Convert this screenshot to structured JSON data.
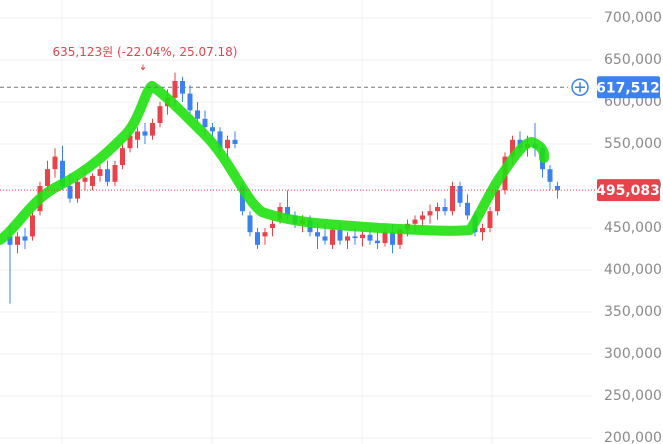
{
  "chart_data": {
    "type": "candlestick",
    "ylim": [
      200000,
      700000
    ],
    "yticks": [
      {
        "value": 200000,
        "label": "200,000"
      },
      {
        "value": 250000,
        "label": "250,000"
      },
      {
        "value": 300000,
        "label": "300,000"
      },
      {
        "value": 350000,
        "label": "350,000"
      },
      {
        "value": 400000,
        "label": "400,000"
      },
      {
        "value": 450000,
        "label": "450,000"
      },
      {
        "value": 500000,
        "label": "500,000"
      },
      {
        "value": 550000,
        "label": "550,000"
      },
      {
        "value": 600000,
        "label": "600,000"
      },
      {
        "value": 650000,
        "label": "650,000"
      },
      {
        "value": 700000,
        "label": "700,000"
      }
    ],
    "grid": true,
    "up_color": "#e8424b",
    "down_color": "#3b82f0",
    "high_marker": {
      "value": 635123,
      "label": "635,123원 (-22.04%, 25.07.18)"
    },
    "reference_line": {
      "value": 617512,
      "label": "617,512"
    },
    "current_price": {
      "value": 495083,
      "label": "495,083"
    },
    "candles": [
      {
        "o": 440000,
        "h": 455000,
        "l": 360000,
        "c": 430000
      },
      {
        "o": 430000,
        "h": 445000,
        "l": 420000,
        "c": 440000
      },
      {
        "o": 440000,
        "h": 450000,
        "l": 425000,
        "c": 435000
      },
      {
        "o": 440000,
        "h": 470000,
        "l": 435000,
        "c": 465000
      },
      {
        "o": 470000,
        "h": 505000,
        "l": 465000,
        "c": 500000
      },
      {
        "o": 500000,
        "h": 530000,
        "l": 495000,
        "c": 520000
      },
      {
        "o": 520000,
        "h": 545000,
        "l": 510000,
        "c": 535000
      },
      {
        "o": 530000,
        "h": 548000,
        "l": 495000,
        "c": 500000
      },
      {
        "o": 500000,
        "h": 515000,
        "l": 480000,
        "c": 485000
      },
      {
        "o": 485000,
        "h": 510000,
        "l": 480000,
        "c": 505000
      },
      {
        "o": 505000,
        "h": 520000,
        "l": 495000,
        "c": 510000
      },
      {
        "o": 500000,
        "h": 515000,
        "l": 495000,
        "c": 512000
      },
      {
        "o": 512000,
        "h": 525000,
        "l": 505000,
        "c": 520000
      },
      {
        "o": 520000,
        "h": 530000,
        "l": 500000,
        "c": 505000
      },
      {
        "o": 505000,
        "h": 530000,
        "l": 500000,
        "c": 525000
      },
      {
        "o": 525000,
        "h": 550000,
        "l": 520000,
        "c": 545000
      },
      {
        "o": 545000,
        "h": 565000,
        "l": 540000,
        "c": 560000
      },
      {
        "o": 555000,
        "h": 570000,
        "l": 545000,
        "c": 565000
      },
      {
        "o": 565000,
        "h": 575000,
        "l": 550000,
        "c": 560000
      },
      {
        "o": 560000,
        "h": 580000,
        "l": 555000,
        "c": 575000
      },
      {
        "o": 575000,
        "h": 600000,
        "l": 570000,
        "c": 595000
      },
      {
        "o": 595000,
        "h": 615000,
        "l": 585000,
        "c": 605000
      },
      {
        "o": 605000,
        "h": 635000,
        "l": 595000,
        "c": 625000
      },
      {
        "o": 625000,
        "h": 630000,
        "l": 600000,
        "c": 610000
      },
      {
        "o": 610000,
        "h": 620000,
        "l": 585000,
        "c": 590000
      },
      {
        "o": 590000,
        "h": 600000,
        "l": 575000,
        "c": 580000
      },
      {
        "o": 580000,
        "h": 590000,
        "l": 560000,
        "c": 570000
      },
      {
        "o": 570000,
        "h": 575000,
        "l": 555000,
        "c": 565000
      },
      {
        "o": 565000,
        "h": 570000,
        "l": 540000,
        "c": 545000
      },
      {
        "o": 545000,
        "h": 560000,
        "l": 535000,
        "c": 555000
      },
      {
        "o": 555000,
        "h": 565000,
        "l": 545000,
        "c": 550000
      },
      {
        "o": 500000,
        "h": 505000,
        "l": 465000,
        "c": 470000
      },
      {
        "o": 465000,
        "h": 470000,
        "l": 440000,
        "c": 445000
      },
      {
        "o": 445000,
        "h": 450000,
        "l": 425000,
        "c": 430000
      },
      {
        "o": 440000,
        "h": 450000,
        "l": 430000,
        "c": 445000
      },
      {
        "o": 450000,
        "h": 460000,
        "l": 440000,
        "c": 455000
      },
      {
        "o": 460000,
        "h": 480000,
        "l": 455000,
        "c": 475000
      },
      {
        "o": 475000,
        "h": 495000,
        "l": 460000,
        "c": 465000
      },
      {
        "o": 465000,
        "h": 470000,
        "l": 450000,
        "c": 455000
      },
      {
        "o": 455000,
        "h": 465000,
        "l": 445000,
        "c": 460000
      },
      {
        "o": 460000,
        "h": 465000,
        "l": 440000,
        "c": 445000
      },
      {
        "o": 445000,
        "h": 455000,
        "l": 425000,
        "c": 440000
      },
      {
        "o": 440000,
        "h": 455000,
        "l": 430000,
        "c": 435000
      },
      {
        "o": 430000,
        "h": 450000,
        "l": 425000,
        "c": 448000
      },
      {
        "o": 448000,
        "h": 455000,
        "l": 430000,
        "c": 435000
      },
      {
        "o": 435000,
        "h": 445000,
        "l": 425000,
        "c": 440000
      },
      {
        "o": 440000,
        "h": 450000,
        "l": 430000,
        "c": 438000
      },
      {
        "o": 438000,
        "h": 448000,
        "l": 428000,
        "c": 442000
      },
      {
        "o": 442000,
        "h": 450000,
        "l": 430000,
        "c": 435000
      },
      {
        "o": 435000,
        "h": 445000,
        "l": 425000,
        "c": 432000
      },
      {
        "o": 432000,
        "h": 450000,
        "l": 428000,
        "c": 445000
      },
      {
        "o": 445000,
        "h": 455000,
        "l": 420000,
        "c": 430000
      },
      {
        "o": 430000,
        "h": 450000,
        "l": 425000,
        "c": 448000
      },
      {
        "o": 448000,
        "h": 460000,
        "l": 440000,
        "c": 455000
      },
      {
        "o": 455000,
        "h": 465000,
        "l": 445000,
        "c": 460000
      },
      {
        "o": 460000,
        "h": 470000,
        "l": 452000,
        "c": 465000
      },
      {
        "o": 465000,
        "h": 478000,
        "l": 455000,
        "c": 470000
      },
      {
        "o": 470000,
        "h": 480000,
        "l": 460000,
        "c": 475000
      },
      {
        "o": 475000,
        "h": 485000,
        "l": 465000,
        "c": 470000
      },
      {
        "o": 470000,
        "h": 505000,
        "l": 465000,
        "c": 500000
      },
      {
        "o": 500000,
        "h": 505000,
        "l": 475000,
        "c": 480000
      },
      {
        "o": 480000,
        "h": 490000,
        "l": 460000,
        "c": 465000
      },
      {
        "o": 465000,
        "h": 470000,
        "l": 440000,
        "c": 445000
      },
      {
        "o": 445000,
        "h": 455000,
        "l": 435000,
        "c": 450000
      },
      {
        "o": 450000,
        "h": 475000,
        "l": 445000,
        "c": 470000
      },
      {
        "o": 470000,
        "h": 500000,
        "l": 465000,
        "c": 495000
      },
      {
        "o": 495000,
        "h": 540000,
        "l": 490000,
        "c": 535000
      },
      {
        "o": 535000,
        "h": 560000,
        "l": 525000,
        "c": 555000
      },
      {
        "o": 555000,
        "h": 565000,
        "l": 540000,
        "c": 545000
      },
      {
        "o": 545000,
        "h": 560000,
        "l": 535000,
        "c": 550000
      },
      {
        "o": 550000,
        "h": 575000,
        "l": 535000,
        "c": 545000
      },
      {
        "o": 545000,
        "h": 550000,
        "l": 510000,
        "c": 520000
      },
      {
        "o": 520000,
        "h": 525000,
        "l": 495000,
        "c": 505000
      },
      {
        "o": 500000,
        "h": 505000,
        "l": 485000,
        "c": 495083
      }
    ]
  }
}
